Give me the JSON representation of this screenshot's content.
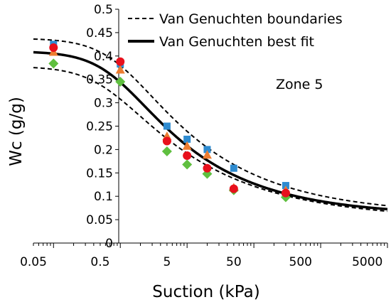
{
  "chart_data": {
    "type": "scatter",
    "xscale": "log",
    "xlim": [
      0.05,
      10000
    ],
    "ylim": [
      0,
      0.5
    ],
    "xlabel": "Suction (kPa)",
    "ylabel": "Wc (g/g)",
    "x_ticks": [
      0.05,
      0.5,
      5,
      50,
      500,
      5000
    ],
    "x_tick_labels": [
      "0.05",
      "0.5",
      "5",
      "50",
      "500",
      "5000"
    ],
    "y_ticks": [
      0,
      0.05,
      0.1,
      0.15,
      0.2,
      0.25,
      0.3,
      0.35,
      0.4,
      0.45,
      0.5
    ],
    "y_tick_labels": [
      "0",
      "0.05",
      "0.1",
      "0.15",
      "0.2",
      "0.25",
      "0.3",
      "0.35",
      "0.4",
      "0.45",
      "0.5"
    ],
    "grid": false,
    "legend_position": "top-right",
    "annotation": "Zone 5",
    "lines": [
      {
        "name": "Van Genuchten boundaries",
        "style": "dashed",
        "color": "#000000",
        "curves": [
          {
            "theta_s": 0.438,
            "theta_r": 0.06,
            "alpha": 1.0,
            "n": 1.32
          },
          {
            "theta_s": 0.378,
            "theta_r": 0.05,
            "alpha": 1.6,
            "n": 1.3
          }
        ]
      },
      {
        "name": "Van Genuchten best fit",
        "style": "solid",
        "color": "#000000",
        "curves": [
          {
            "theta_s": 0.41,
            "theta_r": 0.058,
            "alpha": 1.2,
            "n": 1.34
          }
        ]
      }
    ],
    "series": [
      {
        "marker": "square",
        "color": "#2e8bd0",
        "points": [
          [
            0.1,
            0.425
          ],
          [
            1,
            0.383
          ],
          [
            5,
            0.25
          ],
          [
            10,
            0.222
          ],
          [
            20,
            0.2
          ],
          [
            50,
            0.16
          ],
          [
            300,
            0.123
          ]
        ]
      },
      {
        "marker": "triangle",
        "color": "#ed7d31",
        "points": [
          [
            0.1,
            0.408
          ],
          [
            1,
            0.37
          ],
          [
            5,
            0.228
          ],
          [
            10,
            0.207
          ],
          [
            20,
            0.188
          ],
          [
            50,
            0.118
          ],
          [
            300,
            0.112
          ]
        ]
      },
      {
        "marker": "circle",
        "color": "#e8101c",
        "points": [
          [
            0.1,
            0.418
          ],
          [
            1,
            0.388
          ],
          [
            5,
            0.218
          ],
          [
            10,
            0.187
          ],
          [
            20,
            0.16
          ],
          [
            50,
            0.116
          ],
          [
            300,
            0.107
          ]
        ]
      },
      {
        "marker": "diamond",
        "color": "#5fbf3f",
        "points": [
          [
            0.1,
            0.384
          ],
          [
            1,
            0.345
          ],
          [
            5,
            0.196
          ],
          [
            10,
            0.168
          ],
          [
            20,
            0.148
          ],
          [
            50,
            0.113
          ],
          [
            300,
            0.098
          ]
        ]
      }
    ]
  }
}
